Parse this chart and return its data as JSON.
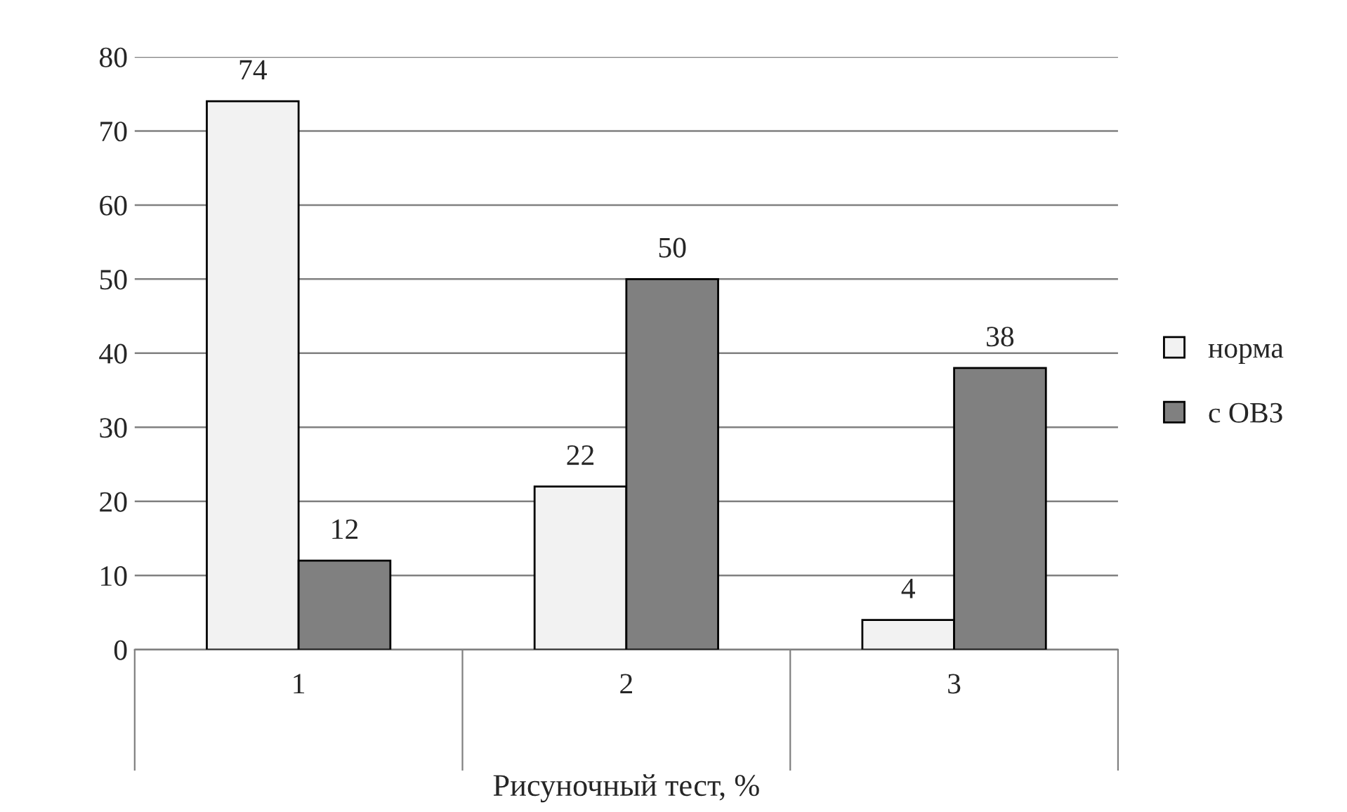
{
  "chart_data": {
    "type": "bar",
    "xlabel": "Рисуночный тест, %",
    "categories": [
      "1",
      "2",
      "3"
    ],
    "series": [
      {
        "name": "норма",
        "color": "#f2f2f2",
        "values": [
          74,
          22,
          4
        ]
      },
      {
        "name": "с ОВЗ",
        "color": "#808080",
        "values": [
          12,
          50,
          38
        ]
      }
    ],
    "ylim": [
      0,
      80
    ],
    "yticks": [
      0,
      10,
      20,
      30,
      40,
      50,
      60,
      70,
      80
    ],
    "grid": "y",
    "legend": "right",
    "data_labels": true
  }
}
